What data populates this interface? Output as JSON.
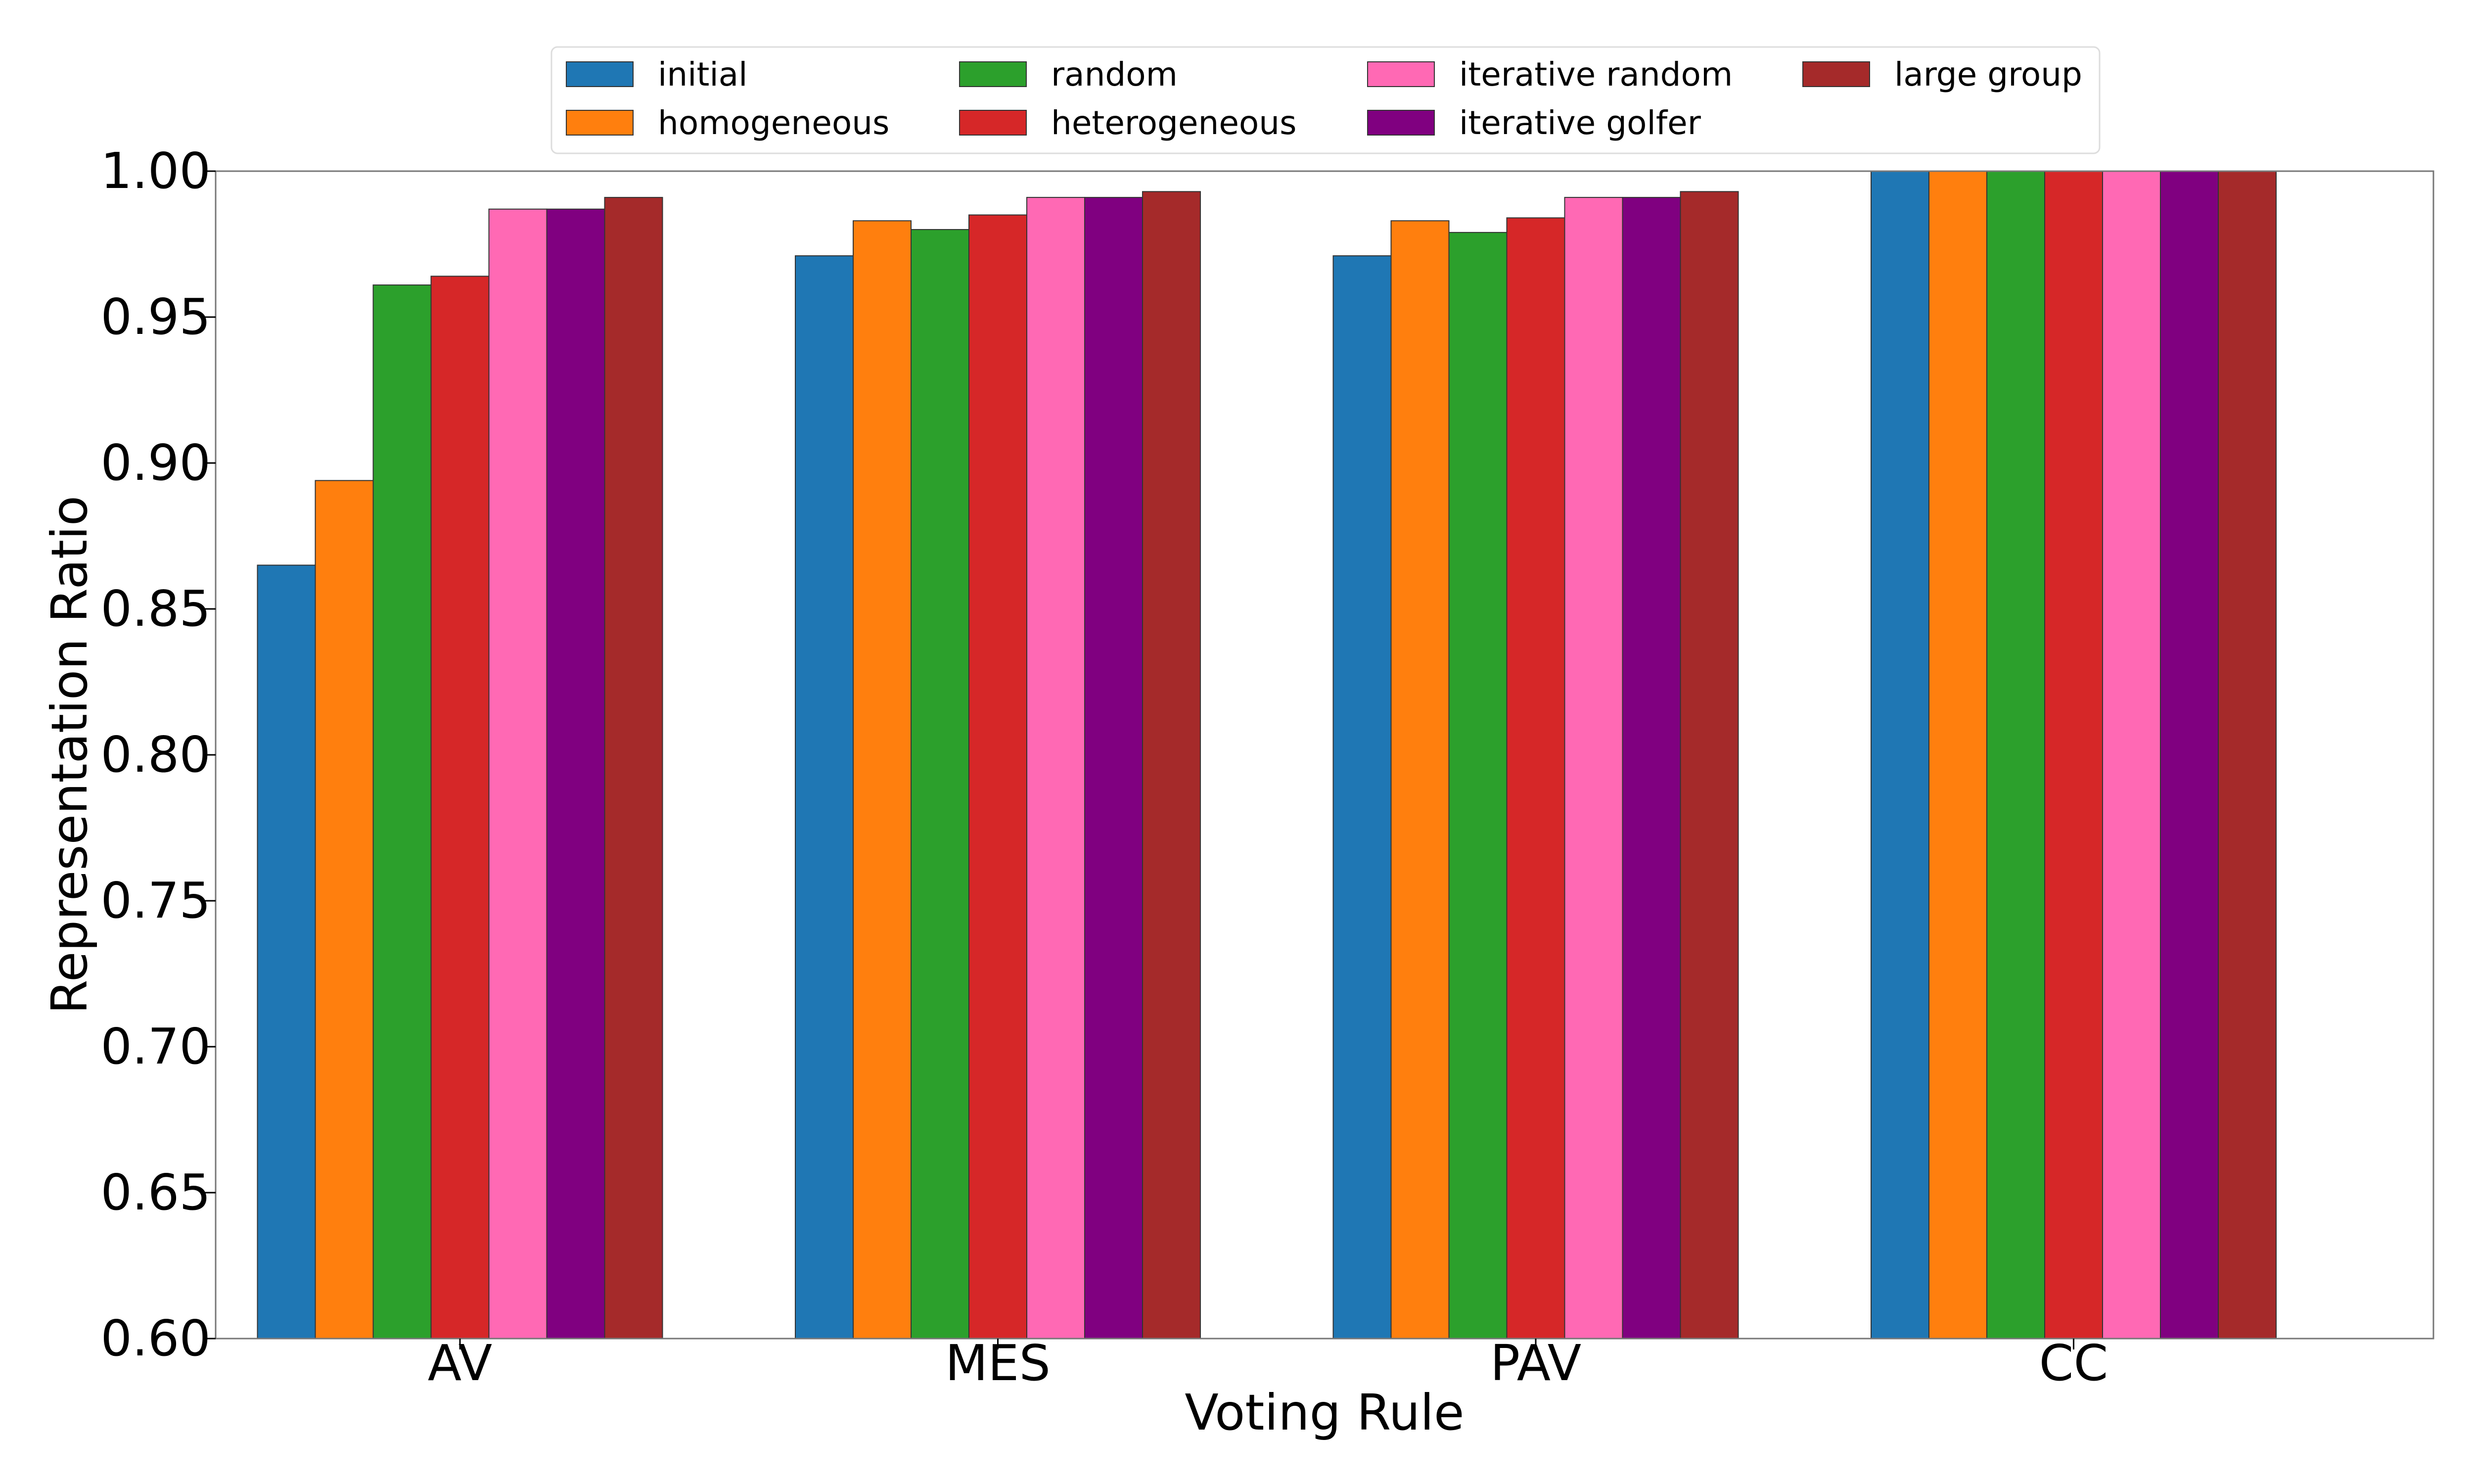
{
  "chart_data": {
    "type": "bar",
    "title": "",
    "xlabel": "Voting Rule",
    "ylabel": "Representation Ratio",
    "ylim": [
      0.6,
      1.0
    ],
    "yticks": [
      "0.60",
      "0.65",
      "0.70",
      "0.75",
      "0.80",
      "0.85",
      "0.90",
      "0.95",
      "1.00"
    ],
    "categories": [
      "AV",
      "MES",
      "PAV",
      "CC"
    ],
    "grid": false,
    "legend_position": "top-center",
    "series": [
      {
        "name": "initial",
        "color": "#1f77b4",
        "values": [
          0.865,
          0.971,
          0.971,
          1.0
        ]
      },
      {
        "name": "homogeneous",
        "color": "#ff7f0e",
        "values": [
          0.894,
          0.983,
          0.983,
          1.0
        ]
      },
      {
        "name": "random",
        "color": "#2ca02c",
        "values": [
          0.961,
          0.98,
          0.979,
          1.0
        ]
      },
      {
        "name": "heterogeneous",
        "color": "#d62728",
        "values": [
          0.964,
          0.985,
          0.984,
          1.0
        ]
      },
      {
        "name": "iterative random",
        "color": "#ff69b4",
        "values": [
          0.987,
          0.991,
          0.991,
          1.0
        ]
      },
      {
        "name": "iterative golfer",
        "color": "#800080",
        "values": [
          0.987,
          0.991,
          0.991,
          1.0
        ]
      },
      {
        "name": "large group",
        "color": "#a52a2a",
        "values": [
          0.991,
          0.993,
          0.993,
          1.0
        ]
      }
    ]
  }
}
